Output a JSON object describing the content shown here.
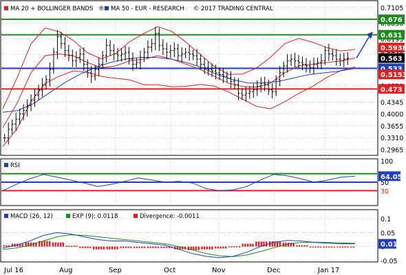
{
  "main_legend": {
    "ma20_bb": "MA 20 + BOLLINGER BANDS",
    "ma50": "MA 50 - EUR - RESEARCH",
    "copyright": "2017 TRADING CENTRAL"
  },
  "rsi_legend": "RSI",
  "macd_legend": {
    "macd": "MACD (26, 12)",
    "exp": "EXP (9): 0.0118",
    "divergence": "Divergence: -0.0011"
  },
  "months": [
    "Jul 16",
    "Aug",
    "Sep",
    "Oct",
    "Nov",
    "Dec",
    "Jan 17"
  ],
  "price_ticks": [
    "0.7105",
    "0.6650",
    "0.6195",
    "0.5740",
    "0.5285",
    "0.4830",
    "0.4345",
    "0.4000",
    "0.3655",
    "0.3310",
    "0.2965"
  ],
  "price_badges": [
    {
      "label": "0.676",
      "color": "#1a8a1a"
    },
    {
      "label": "0.631",
      "color": "#1a8a1a"
    },
    {
      "label": "0.5938",
      "color": "#e02020"
    },
    {
      "label": "0.563",
      "color": "#000000"
    },
    {
      "label": "0.533",
      "color": "#1f3fbf"
    },
    {
      "label": "0.5153",
      "color": "#e02020"
    },
    {
      "label": "0.473",
      "color": "#e02020"
    }
  ],
  "rsi_ticks": [
    "100",
    "50",
    "30"
  ],
  "rsi_badge": {
    "label": "64.05",
    "color": "#1f3fbf"
  },
  "macd_ticks": [
    "0.1",
    "0.05",
    "0",
    "-0.05"
  ],
  "macd_badge": {
    "label": "0.01",
    "color": "#1f3fbf"
  },
  "colors": {
    "ma20": "#e02020",
    "ma50": "#1f3fbf",
    "support_resistance": "#1a8a1a",
    "grid": "#c8c8c8",
    "exp": "#1a8a1a",
    "divergence": "#e02020"
  },
  "chart_data": [
    {
      "type": "candlestick",
      "levels": {
        "resistance": [
          0.676,
          0.631
        ],
        "pivot": 0.533,
        "support": 0.473
      },
      "series": [
        {
          "name": "Price",
          "values": [
            0.33,
            0.355,
            0.37,
            0.385,
            0.4,
            0.41,
            0.425,
            0.44,
            0.455,
            0.47,
            0.485,
            0.5,
            0.53,
            0.58,
            0.625,
            0.605,
            0.585,
            0.57,
            0.555,
            0.565,
            0.575,
            0.545,
            0.52,
            0.51,
            0.53,
            0.545,
            0.57,
            0.6,
            0.585,
            0.575,
            0.57,
            0.575,
            0.58,
            0.56,
            0.545,
            0.55,
            0.565,
            0.58,
            0.595,
            0.605,
            0.635,
            0.6,
            0.59,
            0.58,
            0.585,
            0.59,
            0.57,
            0.575,
            0.58,
            0.575,
            0.57,
            0.56,
            0.545,
            0.535,
            0.53,
            0.525,
            0.52,
            0.515,
            0.51,
            0.505,
            0.495,
            0.485,
            0.46,
            0.455,
            0.46,
            0.465,
            0.47,
            0.48,
            0.49,
            0.485,
            0.47,
            0.465,
            0.5,
            0.52,
            0.54,
            0.555,
            0.56,
            0.555,
            0.55,
            0.545,
            0.54,
            0.535,
            0.545,
            0.55,
            0.555,
            0.585,
            0.575,
            0.57,
            0.56,
            0.555,
            0.56,
            0.563
          ]
        },
        {
          "name": "MA 20",
          "values": [
            0.36,
            0.43,
            0.52,
            0.57,
            0.575,
            0.57,
            0.55,
            0.535,
            0.54,
            0.555,
            0.56,
            0.57,
            0.56,
            0.545,
            0.53,
            0.51,
            0.49,
            0.48,
            0.478,
            0.49,
            0.52,
            0.54,
            0.545,
            0.55,
            0.555,
            0.563
          ]
        },
        {
          "name": "MA 50",
          "values": [
            0.405,
            0.41,
            0.43,
            0.46,
            0.49,
            0.515,
            0.535,
            0.55,
            0.56,
            0.565,
            0.565,
            0.56,
            0.55,
            0.535,
            0.515,
            0.5,
            0.49,
            0.49,
            0.495,
            0.505,
            0.515,
            0.52,
            0.525,
            0.533
          ]
        }
      ]
    },
    {
      "type": "line",
      "series": [
        {
          "name": "RSI",
          "values": [
            30,
            45,
            58,
            68,
            62,
            55,
            48,
            40,
            45,
            52,
            60,
            55,
            50,
            52,
            48,
            35,
            30,
            32,
            40,
            55,
            68,
            65,
            58,
            50,
            55,
            62,
            64.05
          ]
        }
      ],
      "levels": [
        70,
        50,
        30
      ]
    },
    {
      "type": "line",
      "series": [
        {
          "name": "MACD",
          "values": [
            -0.005,
            0.005,
            0.02,
            0.04,
            0.05,
            0.045,
            0.035,
            0.025,
            0.02,
            0.02,
            0.015,
            0.01,
            0.005,
            -0.01,
            -0.025,
            -0.035,
            -0.04,
            -0.035,
            -0.02,
            0.0,
            0.015,
            0.022,
            0.02,
            0.015,
            0.012,
            0.01,
            0.01
          ]
        },
        {
          "name": "EXP",
          "values": [
            -0.01,
            -0.005,
            0.005,
            0.02,
            0.035,
            0.042,
            0.04,
            0.035,
            0.03,
            0.025,
            0.02,
            0.015,
            0.01,
            0.0,
            -0.012,
            -0.025,
            -0.033,
            -0.036,
            -0.03,
            -0.018,
            -0.004,
            0.008,
            0.015,
            0.016,
            0.015,
            0.013,
            0.0118
          ]
        },
        {
          "name": "Divergence",
          "values": [
            0.005,
            0.01,
            0.015,
            0.02,
            0.015,
            0.003,
            -0.005,
            -0.01,
            -0.01,
            -0.005,
            -0.005,
            -0.005,
            -0.005,
            -0.01,
            -0.013,
            -0.01,
            -0.007,
            0.001,
            0.01,
            0.018,
            0.019,
            0.014,
            0.005,
            -0.001,
            -0.003,
            -0.003,
            -0.0011
          ]
        }
      ],
      "levels": [
        0
      ]
    }
  ]
}
